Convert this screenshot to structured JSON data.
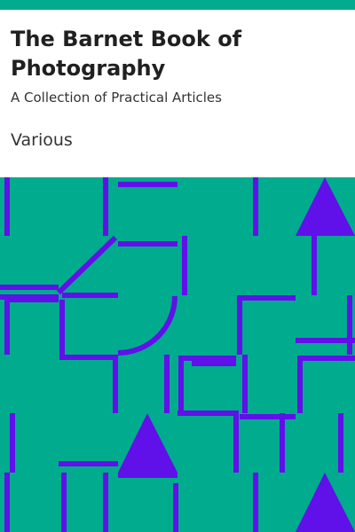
{
  "book": {
    "title": "The Barnet Book of Photography",
    "subtitle": "A Collection of Practical Articles",
    "author": "Various"
  },
  "colors": {
    "band": "#00ab8e",
    "background": "#ffffff",
    "title_text": "#202020",
    "text": "#333333",
    "pattern_line": "#6010e8"
  },
  "cover_art": {
    "description_icon": "geometric-pattern"
  }
}
